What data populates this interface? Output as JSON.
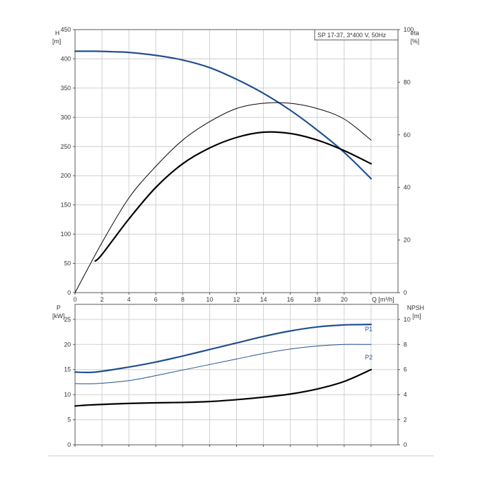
{
  "chart_data": [
    {
      "type": "line",
      "legend": "SP 17-37, 3*400 V, 50Hz",
      "xlabel": "Q [m³/h]",
      "ylabel": [
        "H",
        "[m]"
      ],
      "y2label": [
        "eta",
        "[%]"
      ],
      "xlim": [
        0,
        24
      ],
      "ylim": [
        0,
        450
      ],
      "y2lim": [
        0,
        100
      ],
      "xticks": [
        0,
        2,
        4,
        6,
        8,
        10,
        12,
        14,
        16,
        18,
        20
      ],
      "yticks": [
        0,
        50,
        100,
        150,
        200,
        250,
        300,
        350,
        400,
        450
      ],
      "y2ticks": [
        0,
        20,
        40,
        60,
        80,
        100
      ],
      "grid": true,
      "series": [
        {
          "axis": "left",
          "color": "#1f4f8f",
          "width": 2.2,
          "x": [
            0,
            1.5,
            3,
            4,
            6,
            8,
            10,
            12,
            14,
            16,
            18,
            20,
            22
          ],
          "y": [
            413,
            413,
            412,
            411,
            406,
            398,
            385,
            365,
            341,
            312,
            278,
            240,
            195
          ]
        },
        {
          "axis": "right",
          "color": "#000000",
          "width": 1,
          "x": [
            0,
            2,
            4,
            6,
            8,
            10,
            12,
            14,
            16,
            18,
            20,
            22
          ],
          "y": [
            0,
            19,
            36,
            48,
            58,
            65,
            70,
            72,
            72,
            70,
            66,
            58
          ]
        },
        {
          "axis": "right",
          "color": "#000000",
          "width": 2.2,
          "x": [
            1.5,
            2,
            4,
            6,
            8,
            10,
            12,
            14,
            16,
            18,
            20,
            22
          ],
          "y": [
            12,
            14.5,
            28,
            40,
            49,
            55,
            59,
            61,
            60.5,
            58,
            54,
            49
          ]
        }
      ]
    },
    {
      "type": "line",
      "xlim": [
        0,
        24
      ],
      "ylim": [
        0,
        28
      ],
      "y2lim": [
        0,
        11.2
      ],
      "ylabel": [
        "P",
        "[kW]"
      ],
      "y2label": [
        "NPSH",
        "[m]"
      ],
      "yticks": [
        0,
        5,
        10,
        15,
        20,
        25
      ],
      "y2ticks": [
        0,
        2,
        4,
        6,
        8,
        10
      ],
      "grid": true,
      "series": [
        {
          "name": "P1",
          "axis": "left",
          "color": "#1f4f8f",
          "width": 2.2,
          "x": [
            0,
            1.5,
            4,
            6,
            8,
            10,
            12,
            14,
            16,
            18,
            20,
            22
          ],
          "y": [
            14.5,
            14.5,
            15.5,
            16.5,
            17.7,
            19,
            20.3,
            21.6,
            22.7,
            23.5,
            23.9,
            24.0
          ]
        },
        {
          "name": "P2",
          "axis": "left",
          "color": "#1f4f8f",
          "width": 1,
          "x": [
            0,
            1.5,
            4,
            6,
            8,
            10,
            12,
            14,
            16,
            18,
            20,
            22
          ],
          "y": [
            12.2,
            12.2,
            12.8,
            13.8,
            14.9,
            16.0,
            17.1,
            18.2,
            19.1,
            19.7,
            20.0,
            20.0
          ]
        },
        {
          "axis": "right",
          "color": "#000000",
          "width": 2.2,
          "x": [
            0,
            1.5,
            4,
            6,
            8,
            10,
            12,
            14,
            16,
            18,
            20,
            22
          ],
          "y": [
            3.1,
            3.2,
            3.3,
            3.35,
            3.38,
            3.45,
            3.6,
            3.8,
            4.05,
            4.45,
            5.05,
            6.0
          ]
        }
      ]
    }
  ]
}
